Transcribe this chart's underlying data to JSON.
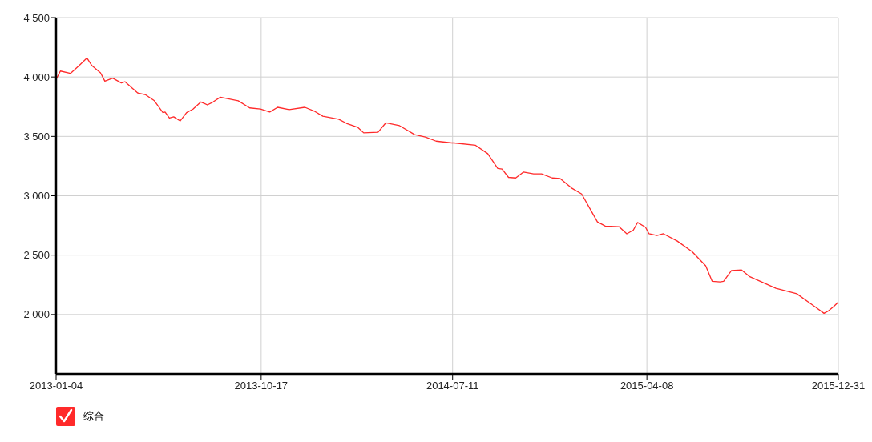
{
  "chart_data": {
    "type": "line",
    "x": [
      "2013-01-04",
      "2013-01-10",
      "2013-01-24",
      "2013-02-05",
      "2013-02-16",
      "2013-02-23",
      "2013-03-07",
      "2013-03-13",
      "2013-03-24",
      "2013-04-05",
      "2013-04-10",
      "2013-04-28",
      "2013-05-09",
      "2013-05-21",
      "2013-06-02",
      "2013-06-05",
      "2013-06-11",
      "2013-06-17",
      "2013-06-26",
      "2013-07-05",
      "2013-07-14",
      "2013-07-25",
      "2013-08-03",
      "2013-08-11",
      "2013-08-21",
      "2013-09-15",
      "2013-10-01",
      "2013-10-16",
      "2013-10-29",
      "2013-11-09",
      "2013-11-25",
      "2013-12-17",
      "2013-12-31",
      "2014-01-11",
      "2014-02-02",
      "2014-02-13",
      "2014-03-01",
      "2014-03-09",
      "2014-03-29",
      "2014-04-09",
      "2014-04-28",
      "2014-05-19",
      "2014-06-03",
      "2014-06-18",
      "2014-07-10",
      "2014-07-13",
      "2014-08-12",
      "2014-08-29",
      "2014-09-12",
      "2014-09-18",
      "2014-09-27",
      "2014-10-07",
      "2014-10-18",
      "2014-11-01",
      "2014-11-12",
      "2014-11-27",
      "2014-12-08",
      "2014-12-24",
      "2015-01-07",
      "2015-01-29",
      "2015-02-09",
      "2015-02-28",
      "2015-03-11",
      "2015-03-20",
      "2015-03-26",
      "2015-04-06",
      "2015-04-11",
      "2015-04-22",
      "2015-05-01",
      "2015-05-20",
      "2015-06-10",
      "2015-06-29",
      "2015-07-08",
      "2015-07-19",
      "2015-07-24",
      "2015-08-04",
      "2015-08-18",
      "2015-08-29",
      "2015-10-05",
      "2015-11-03",
      "2015-11-25",
      "2015-12-11",
      "2015-12-17",
      "2015-12-25",
      "2015-12-31"
    ],
    "series": [
      {
        "name": "综合",
        "color": "#ff2a2a",
        "values": [
          3980,
          4050,
          4030,
          4095,
          4160,
          4095,
          4035,
          3965,
          3990,
          3950,
          3960,
          3865,
          3850,
          3800,
          3700,
          3705,
          3655,
          3665,
          3630,
          3700,
          3730,
          3790,
          3765,
          3790,
          3830,
          3800,
          3740,
          3730,
          3705,
          3745,
          3725,
          3745,
          3710,
          3670,
          3645,
          3610,
          3575,
          3530,
          3535,
          3615,
          3590,
          3515,
          3495,
          3460,
          3445,
          3445,
          3425,
          3355,
          3230,
          3225,
          3155,
          3150,
          3200,
          3185,
          3185,
          3150,
          3145,
          3065,
          3015,
          2780,
          2745,
          2740,
          2680,
          2710,
          2775,
          2735,
          2680,
          2665,
          2680,
          2620,
          2530,
          2410,
          2280,
          2275,
          2280,
          2370,
          2375,
          2320,
          2220,
          2175,
          2080,
          2010,
          2030,
          2070,
          2105
        ]
      }
    ],
    "xlim": [
      "2013-01-04",
      "2015-12-31"
    ],
    "xticks": [
      "2013-01-04",
      "2013-10-17",
      "2014-07-11",
      "2015-04-08",
      "2015-12-31"
    ],
    "ylim": [
      1500,
      4500
    ],
    "yticks": [
      {
        "value": 2000,
        "label": "2 000"
      },
      {
        "value": 2500,
        "label": "2 500"
      },
      {
        "value": 3000,
        "label": "3 000"
      },
      {
        "value": 3500,
        "label": "3 500"
      },
      {
        "value": 4000,
        "label": "4 000"
      },
      {
        "value": 4500,
        "label": "4 500"
      }
    ],
    "grid": true,
    "legend": "bottom left",
    "marker": "none",
    "line_style": "solid"
  }
}
